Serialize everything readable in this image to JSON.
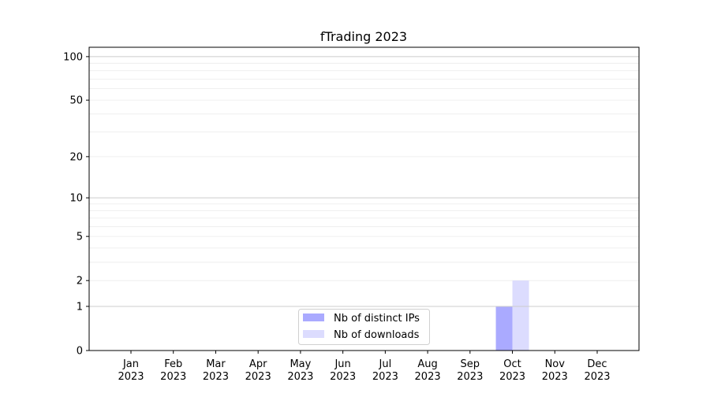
{
  "chart_data": {
    "type": "bar",
    "title": "fTrading 2023",
    "xlabel": "",
    "ylabel": "",
    "y_scale": "log(1+y)",
    "ylim": [
      0,
      116
    ],
    "yticks": [
      0,
      1,
      2,
      5,
      10,
      20,
      50,
      100
    ],
    "ytick_labels": [
      "0",
      "1",
      "2",
      "5",
      "10",
      "20",
      "50",
      "100"
    ],
    "major_grid": [
      1,
      10,
      100
    ],
    "minor_grid": [
      2,
      3,
      4,
      5,
      6,
      7,
      8,
      9,
      20,
      30,
      40,
      50,
      60,
      70,
      80,
      90
    ],
    "grid": true,
    "categories": [
      {
        "month": "Jan",
        "year": "2023"
      },
      {
        "month": "Feb",
        "year": "2023"
      },
      {
        "month": "Mar",
        "year": "2023"
      },
      {
        "month": "Apr",
        "year": "2023"
      },
      {
        "month": "May",
        "year": "2023"
      },
      {
        "month": "Jun",
        "year": "2023"
      },
      {
        "month": "Jul",
        "year": "2023"
      },
      {
        "month": "Aug",
        "year": "2023"
      },
      {
        "month": "Sep",
        "year": "2023"
      },
      {
        "month": "Oct",
        "year": "2023"
      },
      {
        "month": "Nov",
        "year": "2023"
      },
      {
        "month": "Dec",
        "year": "2023"
      }
    ],
    "series": [
      {
        "name": "Nb of distinct IPs",
        "color": "#aaaaff",
        "values": [
          0,
          0,
          0,
          0,
          0,
          0,
          0,
          0,
          0,
          1,
          0,
          0
        ]
      },
      {
        "name": "Nb of downloads",
        "color": "#dcdcfe",
        "values": [
          0,
          0,
          0,
          0,
          0,
          0,
          0,
          0,
          0,
          2,
          0,
          0
        ]
      }
    ],
    "legend_placement": "lower-center"
  }
}
